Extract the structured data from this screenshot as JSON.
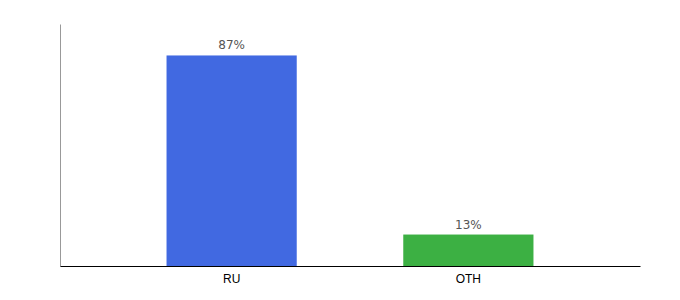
{
  "chart_data": {
    "type": "bar",
    "categories": [
      "RU",
      "OTH"
    ],
    "values": [
      87,
      13
    ],
    "value_labels": [
      "87%",
      "13%"
    ],
    "data_labels": true,
    "colors": [
      "#4169e1",
      "#3cb043"
    ],
    "ylim": [
      0,
      100
    ],
    "tick_labels": "x"
  }
}
